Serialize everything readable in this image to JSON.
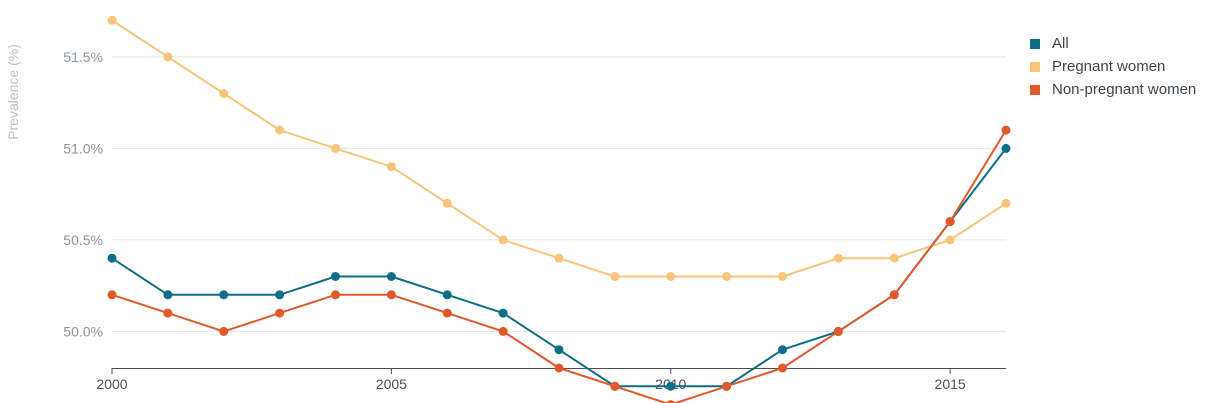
{
  "chart_data": {
    "type": "line",
    "title": "",
    "xlabel": "",
    "ylabel": "Prevalence (%)",
    "x": [
      2000,
      2001,
      2002,
      2003,
      2004,
      2005,
      2006,
      2007,
      2008,
      2009,
      2010,
      2011,
      2012,
      2013,
      2014,
      2015,
      2016
    ],
    "xticks": [
      2000,
      2005,
      2010,
      2015
    ],
    "xtick_labels": [
      "2000",
      "2005",
      "2010",
      "2015"
    ],
    "yticks": [
      50.0,
      50.5,
      51.0,
      51.5
    ],
    "ytick_labels": [
      "50.0%",
      "50.5%",
      "51.0%",
      "51.5%"
    ],
    "xlim": [
      2000,
      2016
    ],
    "ylim": [
      49.8,
      51.8
    ],
    "grid": "horizontal",
    "legend_position": "top-right",
    "series": [
      {
        "name": "All",
        "color": "#0e6e85",
        "values": [
          50.4,
          50.2,
          50.2,
          50.2,
          50.3,
          50.3,
          50.2,
          50.1,
          49.9,
          49.7,
          49.7,
          49.7,
          49.9,
          50.0,
          50.2,
          50.6,
          51.0
        ]
      },
      {
        "name": "Pregnant women",
        "color": "#f8c47b",
        "values": [
          51.7,
          51.5,
          51.3,
          51.1,
          51.0,
          50.9,
          50.7,
          50.5,
          50.4,
          50.3,
          50.3,
          50.3,
          50.3,
          50.4,
          50.4,
          50.5,
          50.7
        ]
      },
      {
        "name": "Non-pregnant women",
        "color": "#e0592a",
        "values": [
          50.2,
          50.1,
          50.0,
          50.1,
          50.2,
          50.2,
          50.1,
          50.0,
          49.8,
          49.7,
          49.6,
          49.7,
          49.8,
          50.0,
          50.2,
          50.6,
          51.1
        ]
      }
    ]
  }
}
